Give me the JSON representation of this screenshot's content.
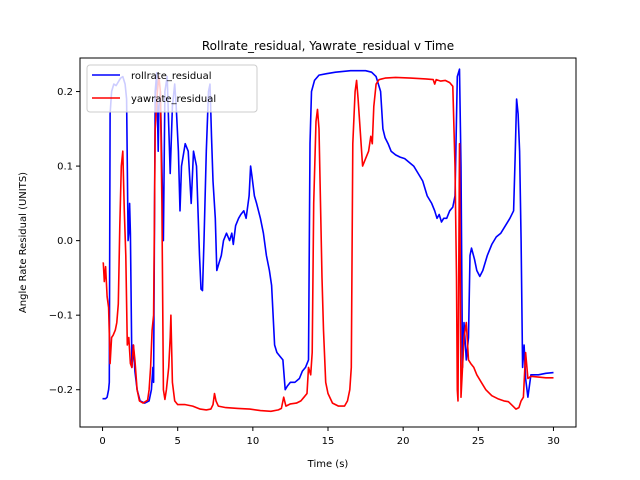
{
  "chart_data": {
    "type": "line",
    "title": "Rollrate_residual, Yawrate_residual v Time",
    "xlabel": "Time (s)",
    "ylabel": "Angle Rate Residual (UNITS)",
    "xlim": [
      -1.5,
      31.5
    ],
    "ylim": [
      -0.25,
      0.245
    ],
    "xticks": [
      0,
      5,
      10,
      15,
      20,
      25,
      30
    ],
    "yticks": [
      -0.2,
      -0.1,
      0.0,
      0.1,
      0.2
    ],
    "xtick_labels": [
      "0",
      "5",
      "10",
      "15",
      "20",
      "25",
      "30"
    ],
    "ytick_labels": [
      "−0.2",
      "−0.1",
      "0.0",
      "0.1",
      "0.2"
    ],
    "grid": false,
    "legend_position": "upper-left",
    "series": [
      {
        "name": "rollrate_residual",
        "color": "#0000ff",
        "points": [
          [
            0.0,
            -0.212
          ],
          [
            0.2,
            -0.212
          ],
          [
            0.3,
            -0.21
          ],
          [
            0.4,
            -0.2
          ],
          [
            0.45,
            -0.19
          ],
          [
            0.5,
            0.17
          ],
          [
            0.6,
            0.2
          ],
          [
            0.75,
            0.21
          ],
          [
            0.9,
            0.208
          ],
          [
            1.05,
            0.213
          ],
          [
            1.2,
            0.218
          ],
          [
            1.35,
            0.22
          ],
          [
            1.5,
            0.21
          ],
          [
            1.6,
            0.19
          ],
          [
            1.7,
            0.0
          ],
          [
            1.75,
            0.01
          ],
          [
            1.8,
            0.05
          ],
          [
            1.85,
            0.01
          ],
          [
            1.95,
            -0.17
          ],
          [
            2.05,
            -0.14
          ],
          [
            2.15,
            -0.175
          ],
          [
            2.3,
            -0.2
          ],
          [
            2.5,
            -0.215
          ],
          [
            2.8,
            -0.218
          ],
          [
            3.1,
            -0.215
          ],
          [
            3.25,
            -0.2
          ],
          [
            3.35,
            -0.17
          ],
          [
            3.4,
            -0.19
          ],
          [
            3.5,
            0.2
          ],
          [
            3.6,
            0.225
          ],
          [
            3.7,
            0.12
          ],
          [
            3.75,
            0.18
          ],
          [
            3.85,
            0.2
          ],
          [
            4.05,
            0.0
          ],
          [
            4.15,
            0.2
          ],
          [
            4.3,
            0.22
          ],
          [
            4.5,
            0.09
          ],
          [
            4.65,
            0.18
          ],
          [
            4.8,
            0.21
          ],
          [
            4.9,
            0.18
          ],
          [
            5.05,
            0.12
          ],
          [
            5.15,
            0.04
          ],
          [
            5.25,
            0.1
          ],
          [
            5.5,
            0.13
          ],
          [
            5.7,
            0.12
          ],
          [
            5.9,
            0.05
          ],
          [
            6.05,
            0.12
          ],
          [
            6.25,
            0.1
          ],
          [
            6.45,
            -0.02
          ],
          [
            6.55,
            -0.065
          ],
          [
            6.65,
            -0.067
          ],
          [
            6.75,
            0.0
          ],
          [
            6.9,
            0.12
          ],
          [
            7.05,
            0.2
          ],
          [
            7.15,
            0.21
          ],
          [
            7.25,
            0.14
          ],
          [
            7.35,
            0.08
          ],
          [
            7.5,
            0.03
          ],
          [
            7.6,
            -0.04
          ],
          [
            7.75,
            -0.03
          ],
          [
            7.9,
            -0.02
          ],
          [
            8.05,
            0.0
          ],
          [
            8.25,
            0.01
          ],
          [
            8.45,
            0.0
          ],
          [
            8.6,
            0.01
          ],
          [
            8.7,
            -0.005
          ],
          [
            8.85,
            0.02
          ],
          [
            9.05,
            0.03
          ],
          [
            9.2,
            0.035
          ],
          [
            9.4,
            0.04
          ],
          [
            9.55,
            0.03
          ],
          [
            9.75,
            0.06
          ],
          [
            9.85,
            0.1
          ],
          [
            9.95,
            0.085
          ],
          [
            10.1,
            0.06
          ],
          [
            10.25,
            0.05
          ],
          [
            10.5,
            0.03
          ],
          [
            10.7,
            0.01
          ],
          [
            10.9,
            -0.02
          ],
          [
            11.1,
            -0.04
          ],
          [
            11.25,
            -0.06
          ],
          [
            11.35,
            -0.1
          ],
          [
            11.45,
            -0.14
          ],
          [
            11.6,
            -0.15
          ],
          [
            11.8,
            -0.155
          ],
          [
            12.0,
            -0.16
          ],
          [
            12.15,
            -0.2
          ],
          [
            12.3,
            -0.195
          ],
          [
            12.5,
            -0.19
          ],
          [
            12.8,
            -0.19
          ],
          [
            13.1,
            -0.185
          ],
          [
            13.3,
            -0.175
          ],
          [
            13.5,
            -0.17
          ],
          [
            13.7,
            -0.16
          ],
          [
            13.8,
            0.13
          ],
          [
            13.9,
            0.2
          ],
          [
            14.1,
            0.215
          ],
          [
            14.4,
            0.222
          ],
          [
            14.9,
            0.224
          ],
          [
            15.5,
            0.226
          ],
          [
            16.0,
            0.227
          ],
          [
            16.5,
            0.228
          ],
          [
            17.0,
            0.228
          ],
          [
            17.5,
            0.228
          ],
          [
            17.9,
            0.226
          ],
          [
            18.2,
            0.22
          ],
          [
            18.5,
            0.2
          ],
          [
            18.65,
            0.15
          ],
          [
            18.8,
            0.138
          ],
          [
            19.0,
            0.13
          ],
          [
            19.2,
            0.12
          ],
          [
            19.5,
            0.115
          ],
          [
            19.8,
            0.112
          ],
          [
            20.1,
            0.11
          ],
          [
            20.4,
            0.105
          ],
          [
            20.7,
            0.1
          ],
          [
            21.0,
            0.09
          ],
          [
            21.3,
            0.08
          ],
          [
            21.6,
            0.06
          ],
          [
            21.9,
            0.05
          ],
          [
            22.1,
            0.04
          ],
          [
            22.25,
            0.03
          ],
          [
            22.4,
            0.035
          ],
          [
            22.55,
            0.025
          ],
          [
            22.7,
            0.03
          ],
          [
            22.9,
            0.03
          ],
          [
            23.1,
            0.04
          ],
          [
            23.3,
            0.045
          ],
          [
            23.45,
            0.06
          ],
          [
            23.6,
            0.22
          ],
          [
            23.75,
            0.23
          ],
          [
            23.85,
            0.1
          ],
          [
            23.95,
            -0.17
          ],
          [
            24.05,
            -0.11
          ],
          [
            24.2,
            -0.16
          ],
          [
            24.35,
            -0.13
          ],
          [
            24.45,
            -0.02
          ],
          [
            24.55,
            -0.01
          ],
          [
            24.75,
            -0.025
          ],
          [
            24.9,
            -0.04
          ],
          [
            25.1,
            -0.048
          ],
          [
            25.3,
            -0.04
          ],
          [
            25.6,
            -0.02
          ],
          [
            25.9,
            -0.005
          ],
          [
            26.2,
            0.005
          ],
          [
            26.5,
            0.01
          ],
          [
            26.8,
            0.02
          ],
          [
            27.1,
            0.03
          ],
          [
            27.35,
            0.04
          ],
          [
            27.45,
            0.11
          ],
          [
            27.55,
            0.19
          ],
          [
            27.65,
            0.17
          ],
          [
            27.75,
            0.12
          ],
          [
            27.85,
            0.0
          ],
          [
            27.95,
            -0.17
          ],
          [
            28.05,
            -0.14
          ],
          [
            28.15,
            -0.185
          ],
          [
            28.3,
            -0.21
          ],
          [
            28.5,
            -0.18
          ],
          [
            29.0,
            -0.18
          ],
          [
            29.5,
            -0.178
          ],
          [
            30.0,
            -0.177
          ]
        ]
      },
      {
        "name": "yawrate_residual",
        "color": "#ff0000",
        "points": [
          [
            0.0,
            -0.03
          ],
          [
            0.05,
            -0.03
          ],
          [
            0.12,
            -0.055
          ],
          [
            0.2,
            -0.035
          ],
          [
            0.3,
            -0.075
          ],
          [
            0.4,
            -0.09
          ],
          [
            0.5,
            -0.165
          ],
          [
            0.6,
            -0.13
          ],
          [
            0.7,
            -0.127
          ],
          [
            0.85,
            -0.12
          ],
          [
            0.95,
            -0.11
          ],
          [
            1.05,
            -0.085
          ],
          [
            1.15,
            0.02
          ],
          [
            1.25,
            0.1
          ],
          [
            1.35,
            0.12
          ],
          [
            1.45,
            0.04
          ],
          [
            1.55,
            -0.02
          ],
          [
            1.65,
            -0.14
          ],
          [
            1.75,
            -0.13
          ],
          [
            1.85,
            -0.165
          ],
          [
            1.95,
            -0.17
          ],
          [
            2.05,
            -0.14
          ],
          [
            2.15,
            -0.16
          ],
          [
            2.3,
            -0.2
          ],
          [
            2.45,
            -0.215
          ],
          [
            2.7,
            -0.218
          ],
          [
            3.0,
            -0.214
          ],
          [
            3.1,
            -0.2
          ],
          [
            3.2,
            -0.17
          ],
          [
            3.3,
            -0.12
          ],
          [
            3.4,
            -0.1
          ],
          [
            3.5,
            0.15
          ],
          [
            3.65,
            0.2
          ],
          [
            3.75,
            0.22
          ],
          [
            3.85,
            0.2
          ],
          [
            3.95,
            0.05
          ],
          [
            4.05,
            -0.2
          ],
          [
            4.15,
            -0.213
          ],
          [
            4.25,
            -0.2
          ],
          [
            4.4,
            -0.17
          ],
          [
            4.5,
            -0.13
          ],
          [
            4.55,
            -0.1
          ],
          [
            4.65,
            -0.19
          ],
          [
            4.8,
            -0.215
          ],
          [
            5.0,
            -0.22
          ],
          [
            5.5,
            -0.22
          ],
          [
            6.0,
            -0.222
          ],
          [
            6.5,
            -0.226
          ],
          [
            6.9,
            -0.227
          ],
          [
            7.2,
            -0.226
          ],
          [
            7.35,
            -0.22
          ],
          [
            7.45,
            -0.205
          ],
          [
            7.55,
            -0.215
          ],
          [
            7.7,
            -0.222
          ],
          [
            8.2,
            -0.224
          ],
          [
            9.0,
            -0.225
          ],
          [
            9.8,
            -0.226
          ],
          [
            10.5,
            -0.228
          ],
          [
            11.2,
            -0.229
          ],
          [
            11.7,
            -0.227
          ],
          [
            11.9,
            -0.225
          ],
          [
            12.05,
            -0.21
          ],
          [
            12.2,
            -0.222
          ],
          [
            12.5,
            -0.219
          ],
          [
            12.9,
            -0.218
          ],
          [
            13.2,
            -0.215
          ],
          [
            13.4,
            -0.21
          ],
          [
            13.6,
            -0.205
          ],
          [
            13.7,
            -0.17
          ],
          [
            13.85,
            -0.18
          ],
          [
            13.95,
            -0.15
          ],
          [
            14.05,
            0.05
          ],
          [
            14.2,
            0.16
          ],
          [
            14.3,
            0.176
          ],
          [
            14.4,
            0.15
          ],
          [
            14.5,
            0.05
          ],
          [
            14.6,
            -0.05
          ],
          [
            14.7,
            -0.12
          ],
          [
            14.85,
            -0.19
          ],
          [
            15.0,
            -0.205
          ],
          [
            15.3,
            -0.218
          ],
          [
            15.7,
            -0.222
          ],
          [
            16.1,
            -0.222
          ],
          [
            16.3,
            -0.215
          ],
          [
            16.45,
            -0.2
          ],
          [
            16.55,
            -0.17
          ],
          [
            16.65,
            0.13
          ],
          [
            16.8,
            0.2
          ],
          [
            16.9,
            0.215
          ],
          [
            17.0,
            0.19
          ],
          [
            17.1,
            0.16
          ],
          [
            17.2,
            0.13
          ],
          [
            17.3,
            0.1
          ],
          [
            17.5,
            0.11
          ],
          [
            17.7,
            0.12
          ],
          [
            17.85,
            0.14
          ],
          [
            17.95,
            0.13
          ],
          [
            18.05,
            0.18
          ],
          [
            18.2,
            0.21
          ],
          [
            18.4,
            0.216
          ],
          [
            18.8,
            0.218
          ],
          [
            19.5,
            0.219
          ],
          [
            20.5,
            0.218
          ],
          [
            21.5,
            0.217
          ],
          [
            22.0,
            0.216
          ],
          [
            22.1,
            0.21
          ],
          [
            22.2,
            0.216
          ],
          [
            22.5,
            0.214
          ],
          [
            22.8,
            0.215
          ],
          [
            23.1,
            0.212
          ],
          [
            23.3,
            0.207
          ],
          [
            23.45,
            0.1
          ],
          [
            23.55,
            -0.05
          ],
          [
            23.6,
            -0.2
          ],
          [
            23.65,
            -0.215
          ],
          [
            23.75,
            0.13
          ],
          [
            23.85,
            -0.21
          ],
          [
            23.95,
            -0.17
          ],
          [
            24.05,
            -0.13
          ],
          [
            24.2,
            -0.11
          ],
          [
            24.35,
            -0.16
          ],
          [
            24.5,
            -0.165
          ],
          [
            24.7,
            -0.17
          ],
          [
            24.9,
            -0.18
          ],
          [
            25.2,
            -0.19
          ],
          [
            25.5,
            -0.2
          ],
          [
            25.9,
            -0.208
          ],
          [
            26.3,
            -0.212
          ],
          [
            26.7,
            -0.215
          ],
          [
            27.0,
            -0.216
          ],
          [
            27.3,
            -0.222
          ],
          [
            27.5,
            -0.226
          ],
          [
            27.7,
            -0.224
          ],
          [
            27.85,
            -0.215
          ],
          [
            28.0,
            -0.21
          ],
          [
            28.15,
            -0.15
          ],
          [
            28.3,
            -0.185
          ],
          [
            28.5,
            -0.182
          ],
          [
            29.0,
            -0.183
          ],
          [
            29.5,
            -0.184
          ],
          [
            30.0,
            -0.184
          ]
        ]
      }
    ]
  }
}
